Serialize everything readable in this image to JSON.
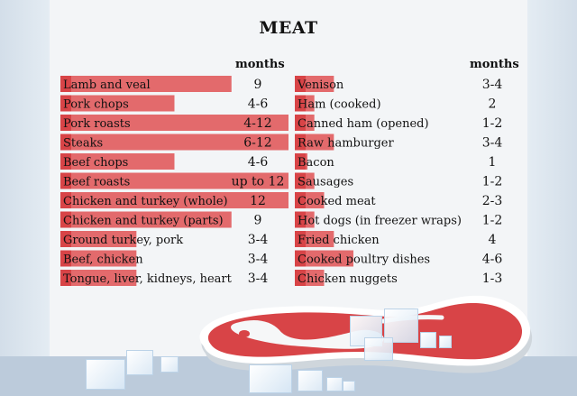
{
  "title": "MEAT",
  "months_header": "months",
  "chart_data": {
    "type": "bar",
    "title": "MEAT",
    "value_label": "months",
    "max_months": 12,
    "colors": {
      "bar": "#e36a6c",
      "bar_dark": "#d84447",
      "label_bar": "#cc3b3e"
    },
    "left": [
      {
        "label": "Lamb and veal",
        "value_text": "9",
        "months": 9
      },
      {
        "label": "Pork chops",
        "value_text": "4-6",
        "months": 6
      },
      {
        "label": "Pork roasts",
        "value_text": "4-12",
        "months": 12
      },
      {
        "label": "Steaks",
        "value_text": "6-12",
        "months": 12
      },
      {
        "label": "Beef chops",
        "value_text": "4-6",
        "months": 6
      },
      {
        "label": "Beef roasts",
        "value_text": "up to 12",
        "months": 12
      },
      {
        "label": "Chicken and turkey (whole)",
        "value_text": "12",
        "months": 12
      },
      {
        "label": "Chicken and turkey (parts)",
        "value_text": "9",
        "months": 9
      },
      {
        "label": "Ground turkey, pork",
        "value_text": "3-4",
        "months": 4
      },
      {
        "label": "Beef, chicken",
        "value_text": "3-4",
        "months": 4
      },
      {
        "label": "Tongue, liver, kidneys, heart",
        "value_text": "3-4",
        "months": 4
      }
    ],
    "right": [
      {
        "label": "Venison",
        "value_text": "3-4",
        "months": 4
      },
      {
        "label": "Ham (cooked)",
        "value_text": "2",
        "months": 2
      },
      {
        "label": "Canned ham (opened)",
        "value_text": "1-2",
        "months": 2
      },
      {
        "label": "Raw hamburger",
        "value_text": "3-4",
        "months": 4
      },
      {
        "label": "Bacon",
        "value_text": "1",
        "months": 1
      },
      {
        "label": "Sausages",
        "value_text": "1-2",
        "months": 2
      },
      {
        "label": "Cooked meat",
        "value_text": "2-3",
        "months": 3
      },
      {
        "label": "Hot dogs (in freezer wraps)",
        "value_text": "1-2",
        "months": 2
      },
      {
        "label": "Fried chicken",
        "value_text": "4",
        "months": 4
      },
      {
        "label": "Cooked poultry dishes",
        "value_text": "4-6",
        "months": 6
      },
      {
        "label": "Chicken nuggets",
        "value_text": "1-3",
        "months": 3
      }
    ]
  }
}
